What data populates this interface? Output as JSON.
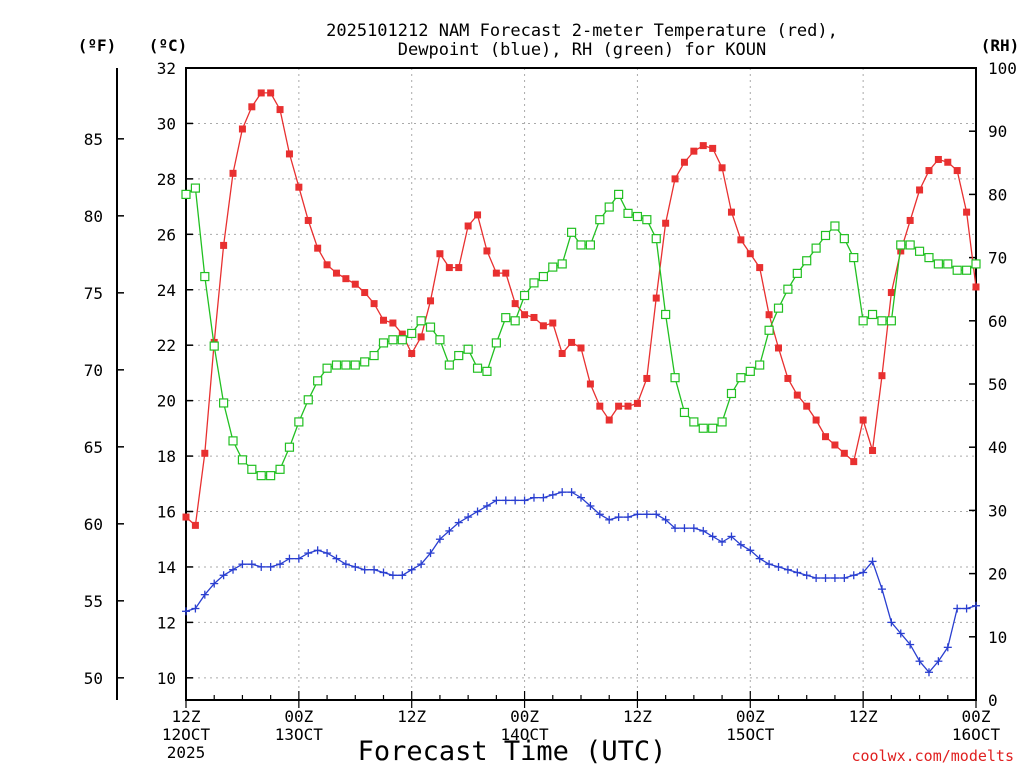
{
  "chart_data": {
    "type": "line",
    "title_line1": "2025101212 NAM Forecast 2-meter Temperature (red),",
    "title_line2": "Dewpoint (blue), RH (green) for KOUN",
    "xlabel": "Forecast Time (UTC)",
    "unit_f": "(ºF)",
    "unit_c": "(ºC)",
    "unit_rh": "(RH)",
    "credit": "coolwx.com/modelts",
    "ylim_c": [
      9.2,
      32
    ],
    "ylim_rh": [
      0,
      100
    ],
    "x_hours": [
      0,
      84
    ],
    "c_ticks": [
      10,
      12,
      14,
      16,
      18,
      20,
      22,
      24,
      26,
      28,
      30,
      32
    ],
    "f_ticks": [
      50,
      55,
      60,
      65,
      70,
      75,
      80,
      85
    ],
    "rh_ticks": [
      0,
      10,
      20,
      30,
      40,
      50,
      60,
      70,
      80,
      90,
      100
    ],
    "x_ticks": [
      {
        "hour": 0,
        "line1": "12Z",
        "line2": "12OCT",
        "line3": "2025"
      },
      {
        "hour": 12,
        "line1": "00Z",
        "line2": "13OCT",
        "line3": ""
      },
      {
        "hour": 24,
        "line1": "12Z",
        "line2": "",
        "line3": ""
      },
      {
        "hour": 36,
        "line1": "00Z",
        "line2": "14OCT",
        "line3": ""
      },
      {
        "hour": 48,
        "line1": "12Z",
        "line2": "",
        "line3": ""
      },
      {
        "hour": 60,
        "line1": "00Z",
        "line2": "15OCT",
        "line3": ""
      },
      {
        "hour": 72,
        "line1": "12Z",
        "line2": "",
        "line3": ""
      },
      {
        "hour": 84,
        "line1": "00Z",
        "line2": "16OCT",
        "line3": ""
      }
    ],
    "series": [
      {
        "name": "Temperature",
        "unit": "C",
        "color": "#e83030",
        "marker": "square-filled",
        "hours": [
          0,
          1,
          2,
          3,
          4,
          5,
          6,
          7,
          8,
          9,
          10,
          11,
          12,
          13,
          14,
          15,
          16,
          17,
          18,
          19,
          20,
          21,
          22,
          23,
          24,
          25,
          26,
          27,
          28,
          29,
          30,
          31,
          32,
          33,
          34,
          35,
          36,
          37,
          38,
          39,
          40,
          41,
          42,
          43,
          44,
          45,
          46,
          47,
          48,
          49,
          50,
          51,
          52,
          53,
          54,
          55,
          56,
          57,
          58,
          59,
          60,
          61,
          62,
          63,
          64,
          65,
          66,
          67,
          68,
          69,
          70,
          71,
          72,
          73,
          74,
          75,
          76,
          77,
          78,
          79,
          80,
          81,
          82,
          83,
          84
        ],
        "values": [
          15.8,
          15.5,
          18.1,
          22.1,
          25.6,
          28.2,
          29.8,
          30.6,
          31.1,
          31.1,
          30.5,
          28.9,
          27.7,
          26.5,
          25.5,
          24.9,
          24.6,
          24.4,
          24.2,
          23.9,
          23.5,
          22.9,
          22.8,
          22.4,
          21.7,
          22.3,
          23.6,
          25.3,
          24.8,
          24.8,
          26.3,
          26.7,
          25.4,
          24.6,
          24.6,
          23.5,
          23.1,
          23.0,
          22.7,
          22.8,
          21.7,
          22.1,
          21.9,
          20.6,
          19.8,
          19.3,
          19.8,
          19.8,
          19.9,
          20.8,
          23.7,
          26.4,
          28.0,
          28.6,
          29.0,
          29.2,
          29.1,
          28.4,
          26.8,
          25.8,
          25.3,
          24.8,
          23.1,
          21.9,
          20.8,
          20.2,
          19.8,
          19.3,
          18.7,
          18.4,
          18.1,
          17.8,
          19.3,
          18.2,
          20.9,
          23.9,
          25.4,
          26.5,
          27.6,
          28.3,
          28.7,
          28.6,
          28.3,
          26.8,
          24.1
        ]
      },
      {
        "name": "Dewpoint",
        "unit": "C",
        "color": "#2a3fd0",
        "marker": "plus",
        "hours": [
          0,
          1,
          2,
          3,
          4,
          5,
          6,
          7,
          8,
          9,
          10,
          11,
          12,
          13,
          14,
          15,
          16,
          17,
          18,
          19,
          20,
          21,
          22,
          23,
          24,
          25,
          26,
          27,
          28,
          29,
          30,
          31,
          32,
          33,
          34,
          35,
          36,
          37,
          38,
          39,
          40,
          41,
          42,
          43,
          44,
          45,
          46,
          47,
          48,
          49,
          50,
          51,
          52,
          53,
          54,
          55,
          56,
          57,
          58,
          59,
          60,
          61,
          62,
          63,
          64,
          65,
          66,
          67,
          68,
          69,
          70,
          71,
          72,
          73,
          74,
          75,
          76,
          77,
          78,
          79,
          80,
          81,
          82,
          83,
          84
        ],
        "values": [
          12.4,
          12.5,
          13.0,
          13.4,
          13.7,
          13.9,
          14.1,
          14.1,
          14.0,
          14.0,
          14.1,
          14.3,
          14.3,
          14.5,
          14.6,
          14.5,
          14.3,
          14.1,
          14.0,
          13.9,
          13.9,
          13.8,
          13.7,
          13.7,
          13.9,
          14.1,
          14.5,
          15.0,
          15.3,
          15.6,
          15.8,
          16.0,
          16.2,
          16.4,
          16.4,
          16.4,
          16.4,
          16.5,
          16.5,
          16.6,
          16.7,
          16.7,
          16.5,
          16.2,
          15.9,
          15.7,
          15.8,
          15.8,
          15.9,
          15.9,
          15.9,
          15.7,
          15.4,
          15.4,
          15.4,
          15.3,
          15.1,
          14.9,
          15.1,
          14.8,
          14.6,
          14.3,
          14.1,
          14.0,
          13.9,
          13.8,
          13.7,
          13.6,
          13.6,
          13.6,
          13.6,
          13.7,
          13.8,
          14.2,
          13.2,
          12.0,
          11.6,
          11.2,
          10.6,
          10.2,
          10.6,
          11.1,
          12.5,
          12.5,
          12.6
        ]
      },
      {
        "name": "RH",
        "unit": "%",
        "color": "#22c022",
        "marker": "square-open",
        "hours": [
          0,
          1,
          2,
          3,
          4,
          5,
          6,
          7,
          8,
          9,
          10,
          11,
          12,
          13,
          14,
          15,
          16,
          17,
          18,
          19,
          20,
          21,
          22,
          23,
          24,
          25,
          26,
          27,
          28,
          29,
          30,
          31,
          32,
          33,
          34,
          35,
          36,
          37,
          38,
          39,
          40,
          41,
          42,
          43,
          44,
          45,
          46,
          47,
          48,
          49,
          50,
          51,
          52,
          53,
          54,
          55,
          56,
          57,
          58,
          59,
          60,
          61,
          62,
          63,
          64,
          65,
          66,
          67,
          68,
          69,
          70,
          71,
          72,
          73,
          74,
          75,
          76,
          77,
          78,
          79,
          80,
          81,
          82,
          83,
          84
        ],
        "values": [
          80,
          81,
          67,
          56,
          47,
          41,
          38,
          36.5,
          35.5,
          35.5,
          36.5,
          40,
          44,
          47.5,
          50.5,
          52.5,
          53,
          53,
          53,
          53.5,
          54.5,
          56.5,
          57,
          57,
          58,
          60,
          59,
          57,
          53,
          54.5,
          55.5,
          52.5,
          52,
          56.5,
          60.5,
          60,
          64,
          66,
          67,
          68.5,
          69,
          74,
          72,
          72,
          76,
          78,
          80,
          77,
          76.5,
          76,
          73,
          61,
          51,
          45.5,
          44,
          43,
          43,
          44,
          48.5,
          51,
          52,
          53,
          58.5,
          62,
          65,
          67.5,
          69.5,
          71.5,
          73.5,
          75,
          73,
          70,
          60,
          61,
          60,
          60,
          72,
          72,
          71,
          70,
          69,
          69,
          68,
          68,
          69
        ]
      }
    ]
  }
}
